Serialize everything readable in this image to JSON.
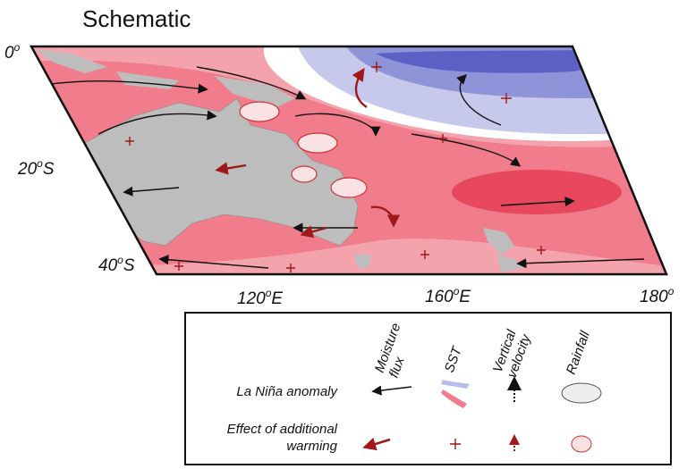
{
  "title": "Schematic",
  "map": {
    "lat_labels": [
      {
        "deg": "0",
        "sup": "o"
      },
      {
        "deg": "20",
        "sup": "o",
        "hemi": "S"
      },
      {
        "deg": "40",
        "sup": "o",
        "hemi": "S"
      }
    ],
    "lon_labels": [
      {
        "deg": "120",
        "sup": "o",
        "hemi": "E"
      },
      {
        "deg": "160",
        "sup": "o",
        "hemi": "E"
      },
      {
        "deg": "180",
        "sup": "o"
      }
    ]
  },
  "legend": {
    "columns": [
      {
        "lines": [
          "Moisture",
          "flux"
        ]
      },
      {
        "lines": [
          "SST"
        ]
      },
      {
        "lines": [
          "Vertical",
          "velocity"
        ]
      },
      {
        "lines": [
          "Rainfall"
        ]
      }
    ],
    "rows": [
      {
        "lines": [
          "La Niña anomaly"
        ]
      },
      {
        "lines": [
          "Effect of additional",
          "warming"
        ]
      }
    ]
  }
}
